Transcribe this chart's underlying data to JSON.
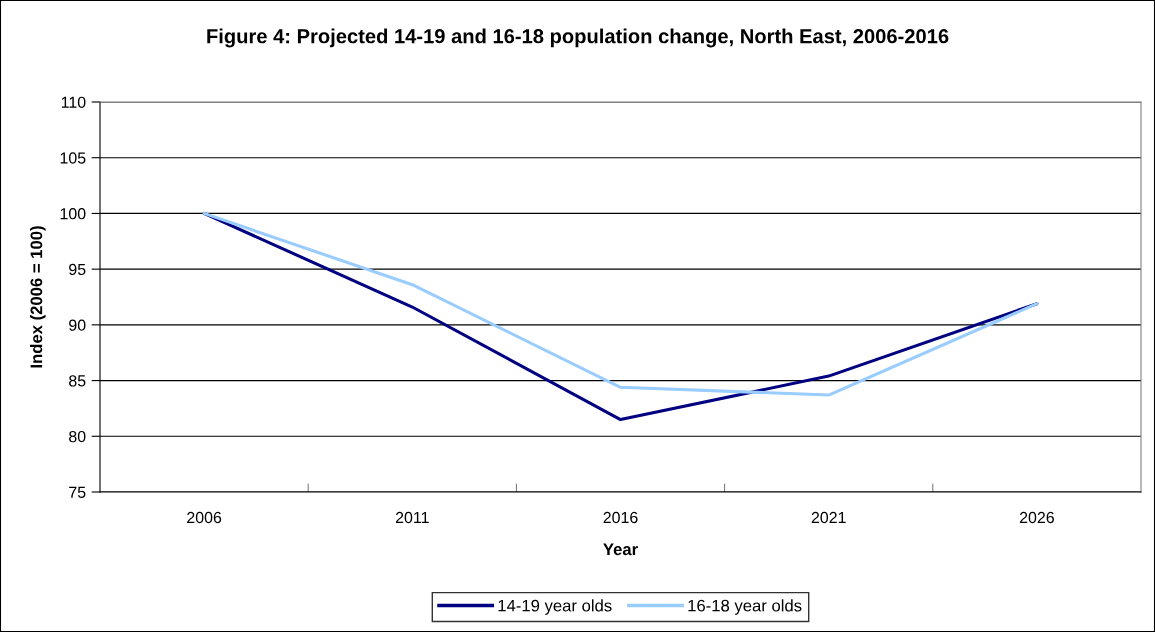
{
  "chart_data": {
    "type": "line",
    "title": "Figure 4: Projected 14-19 and 16-18 population change, North East, 2006-2016",
    "xlabel": "Year",
    "ylabel": "Index (2006 = 100)",
    "categories": [
      "2006",
      "2011",
      "2016",
      "2021",
      "2026"
    ],
    "series": [
      {
        "name": "14-19 year olds",
        "color": "#000080",
        "values": [
          100,
          91.6,
          81.5,
          85.4,
          91.9
        ]
      },
      {
        "name": "16-18 year olds",
        "color": "#99ccff",
        "values": [
          100,
          93.6,
          84.4,
          83.7,
          91.9
        ]
      }
    ],
    "ylim": [
      75,
      110
    ],
    "yticks": [
      75,
      80,
      85,
      90,
      95,
      100,
      105,
      110
    ],
    "grid": "y",
    "legend": "bottom"
  }
}
